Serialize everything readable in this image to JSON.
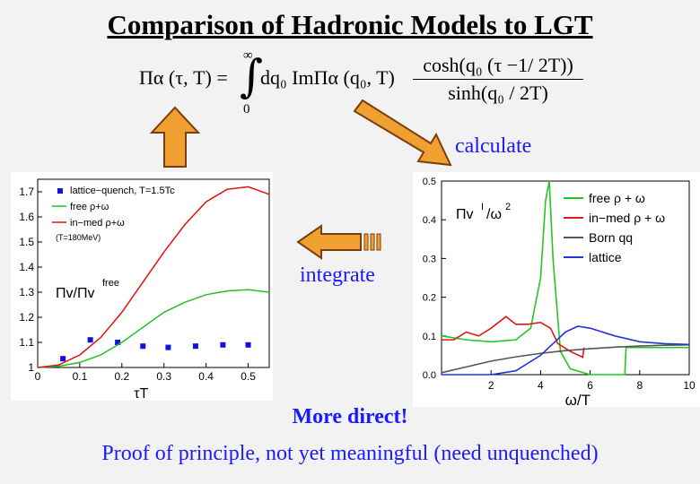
{
  "slide": {
    "title": "Comparison of Hadronic Models to LGT",
    "calculate_label": "calculate",
    "integrate_label": "integrate",
    "more_direct": "More direct!",
    "proof_text": "Proof of principle, not yet meaningful  (need unquenched)",
    "accent_color": "#1a1aff",
    "arrow_color": "#f0a030"
  },
  "formula": {
    "lhs": "Πα (τ, T) =",
    "int_upper": "∞",
    "int_lower": "0",
    "integrand": "dq₀ ImΠα (q₀, T)",
    "numerator": "cosh(q₀ (τ −1/ 2T))",
    "denominator": "sinh(q₀ / 2T)"
  },
  "chart_data": [
    {
      "type": "line",
      "xlabel": "τT",
      "ylabel": "Πv/Πv free",
      "xlim": [
        0,
        0.55
      ],
      "ylim": [
        1,
        1.75
      ],
      "xticks": [
        "0",
        "0.1",
        "0.2",
        "0.3",
        "0.4",
        "0.5"
      ],
      "yticks": [
        "1",
        "1.1",
        "1.2",
        "1.3",
        "1.4",
        "1.5",
        "1.6",
        "1.7"
      ],
      "legend": [
        "lattice−quench, T=1.5Tc",
        "free ρ+ω",
        "in−med ρ+ω",
        "(T=180MeV)"
      ],
      "series": [
        {
          "name": "lattice−quench, T=1.5Tc",
          "color": "#1010e0",
          "x": [
            0.06,
            0.125,
            0.19,
            0.25,
            0.31,
            0.375,
            0.44,
            0.5
          ],
          "y": [
            1.035,
            1.11,
            1.1,
            1.085,
            1.08,
            1.085,
            1.09,
            1.09
          ]
        },
        {
          "name": "free ρ+ω",
          "color": "#22c022",
          "x": [
            0,
            0.05,
            0.1,
            0.15,
            0.2,
            0.25,
            0.3,
            0.35,
            0.4,
            0.45,
            0.5,
            0.55
          ],
          "y": [
            1.0,
            1.005,
            1.02,
            1.05,
            1.1,
            1.16,
            1.22,
            1.26,
            1.29,
            1.305,
            1.31,
            1.3
          ]
        },
        {
          "name": "in−med ρ+ω",
          "color": "#e01010",
          "x": [
            0,
            0.05,
            0.1,
            0.15,
            0.2,
            0.25,
            0.3,
            0.35,
            0.4,
            0.45,
            0.5,
            0.55
          ],
          "y": [
            1.0,
            1.01,
            1.05,
            1.12,
            1.22,
            1.34,
            1.46,
            1.57,
            1.66,
            1.71,
            1.72,
            1.69
          ]
        }
      ]
    },
    {
      "type": "line",
      "xlabel": "ω/T",
      "ylabel": "ΠvI/ω²",
      "xlim": [
        0,
        10
      ],
      "ylim": [
        0,
        0.5
      ],
      "xticks": [
        "2",
        "4",
        "6",
        "8",
        "10"
      ],
      "yticks": [
        "0.0",
        "0.1",
        "0.2",
        "0.3",
        "0.4",
        "0.5"
      ],
      "legend": [
        "free ρ + ω",
        "in−med ρ + ω",
        "Born qq",
        "lattice"
      ],
      "series": [
        {
          "name": "free ρ + ω",
          "color": "#22c822",
          "x": [
            0,
            1,
            2,
            3,
            3.6,
            4.0,
            4.2,
            4.35,
            4.5,
            4.8,
            5.2,
            6,
            7,
            7.4,
            7.45,
            10
          ],
          "y": [
            0.1,
            0.09,
            0.085,
            0.09,
            0.12,
            0.25,
            0.45,
            0.52,
            0.3,
            0.06,
            0.015,
            0.0,
            0.0,
            0.0,
            0.07,
            0.07
          ]
        },
        {
          "name": "in−med ρ + ω",
          "color": "#e01818",
          "x": [
            0,
            0.5,
            1,
            1.5,
            2,
            2.6,
            3,
            3.5,
            4,
            4.4,
            4.7,
            5.2,
            5.7,
            5.75
          ],
          "y": [
            0.09,
            0.09,
            0.11,
            0.1,
            0.12,
            0.15,
            0.13,
            0.13,
            0.135,
            0.12,
            0.08,
            0.06,
            0.045,
            0.07
          ]
        },
        {
          "name": "Born qq",
          "color": "#555555",
          "x": [
            0,
            1,
            2,
            3,
            4,
            5,
            6,
            7,
            8,
            9,
            10
          ],
          "y": [
            0.005,
            0.02,
            0.035,
            0.046,
            0.055,
            0.062,
            0.067,
            0.071,
            0.074,
            0.076,
            0.077
          ]
        },
        {
          "name": "lattice",
          "color": "#2233dd",
          "x": [
            0,
            1,
            2,
            3,
            4,
            5,
            5.5,
            6,
            7,
            8,
            9,
            10
          ],
          "y": [
            0.0,
            0.0,
            0.0,
            0.01,
            0.05,
            0.11,
            0.125,
            0.12,
            0.1,
            0.085,
            0.08,
            0.078
          ]
        }
      ]
    }
  ]
}
